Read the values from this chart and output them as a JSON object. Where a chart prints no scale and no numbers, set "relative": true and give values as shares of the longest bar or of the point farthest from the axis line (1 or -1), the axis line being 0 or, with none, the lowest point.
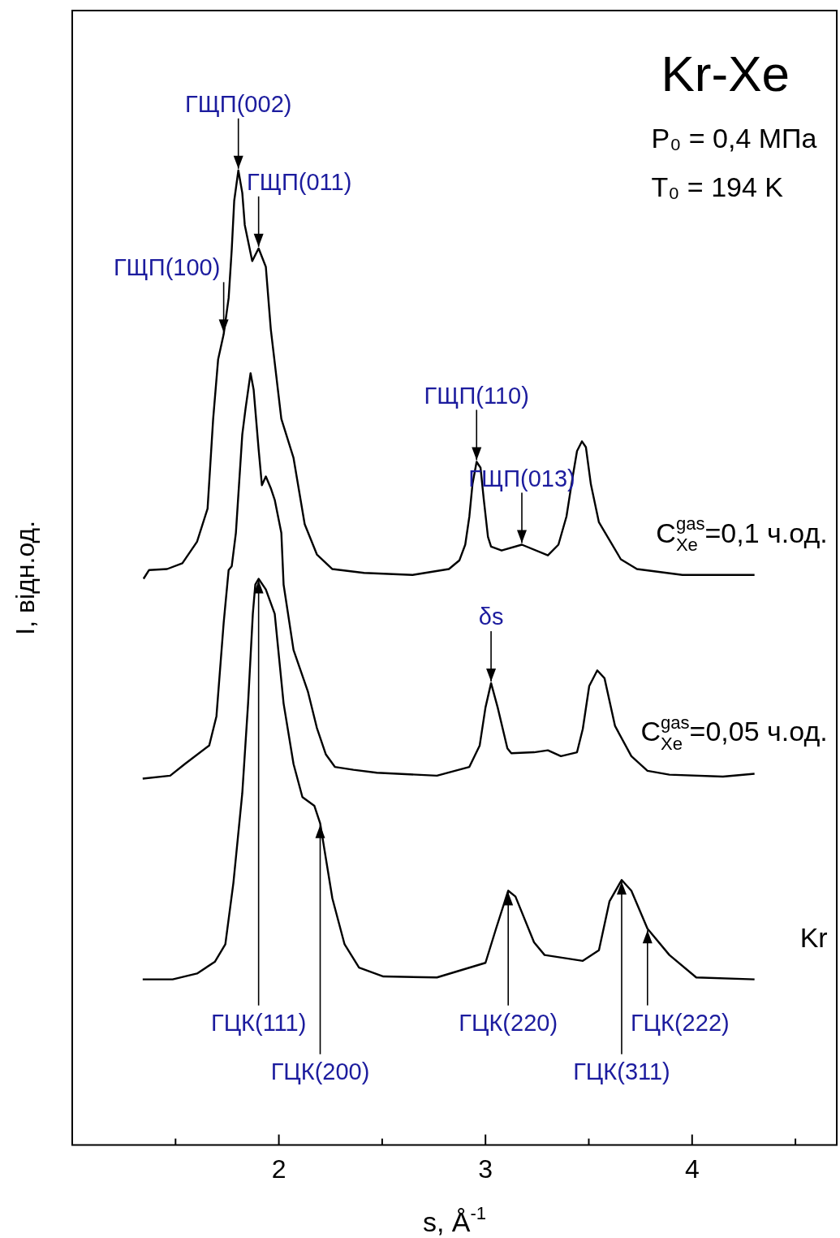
{
  "chart_data": {
    "type": "line",
    "title": "Kr-Xe",
    "xlabel": "s, Å$^{-1}$",
    "ylabel": "I, відн.од.",
    "relative": true,
    "xlim": [
      1,
      4.7
    ],
    "xticks": [
      {
        "value": 1.5,
        "label": null
      },
      2,
      {
        "value": 2.5,
        "label": null
      },
      3,
      {
        "value": 3.5,
        "label": null
      },
      4,
      {
        "value": 4.5,
        "label": null
      }
    ],
    "tick_labels": "x",
    "marker": "none",
    "line_style": "solid",
    "series": [
      {
        "name": "C$^{gas}$$_{Xe}$=0,1 ч.од.",
        "color": "#000000",
        "x": [
          1.345,
          1.372,
          1.459,
          1.533,
          1.604,
          1.655,
          1.682,
          1.706,
          1.733,
          1.757,
          1.772,
          1.784,
          1.804,
          1.823,
          1.835,
          1.871,
          1.902,
          1.937,
          1.961,
          2.012,
          2.071,
          2.125,
          2.184,
          2.259,
          2.412,
          2.647,
          2.823,
          2.874,
          2.902,
          2.922,
          2.937,
          2.957,
          2.976,
          2.992,
          3.012,
          3.027,
          3.078,
          3.176,
          3.302,
          3.353,
          3.392,
          3.423,
          3.443,
          3.467,
          3.486,
          3.51,
          3.549,
          3.655,
          3.733,
          3.953,
          4.302
        ],
        "values": [
          0.581,
          0.59,
          0.591,
          0.597,
          0.619,
          0.653,
          0.745,
          0.806,
          0.832,
          0.869,
          0.919,
          0.969,
          1,
          0.977,
          0.944,
          0.907,
          0.92,
          0.901,
          0.837,
          0.745,
          0.705,
          0.637,
          0.606,
          0.591,
          0.587,
          0.585,
          0.591,
          0.6,
          0.616,
          0.645,
          0.678,
          0.701,
          0.695,
          0.662,
          0.624,
          0.614,
          0.61,
          0.616,
          0.605,
          0.616,
          0.645,
          0.687,
          0.712,
          0.722,
          0.716,
          0.678,
          0.639,
          0.601,
          0.591,
          0.585,
          0.585
        ]
      },
      {
        "name": "C$^{gas}$$_{Xe}$=0,05 ч.од.",
        "color": "#000000",
        "x": [
          1.341,
          1.474,
          1.545,
          1.663,
          1.698,
          1.733,
          1.757,
          1.772,
          1.792,
          1.823,
          1.839,
          1.863,
          1.878,
          1.902,
          1.918,
          1.937,
          1.961,
          1.98,
          2.012,
          2.023,
          2.071,
          2.141,
          2.184,
          2.227,
          2.271,
          2.361,
          2.474,
          2.765,
          2.922,
          2.972,
          3,
          3.027,
          3.059,
          3.106,
          3.125,
          3.235,
          3.302,
          3.365,
          3.443,
          3.471,
          3.502,
          3.541,
          3.576,
          3.627,
          3.706,
          3.784,
          3.89,
          4.149,
          4.302
        ],
        "values": [
          0.376,
          0.379,
          0.391,
          0.41,
          0.44,
          0.536,
          0.59,
          0.594,
          0.628,
          0.729,
          0.756,
          0.792,
          0.775,
          0.714,
          0.677,
          0.686,
          0.674,
          0.662,
          0.628,
          0.575,
          0.508,
          0.465,
          0.428,
          0.401,
          0.388,
          0.385,
          0.382,
          0.379,
          0.388,
          0.41,
          0.449,
          0.474,
          0.449,
          0.407,
          0.402,
          0.403,
          0.405,
          0.399,
          0.403,
          0.427,
          0.471,
          0.487,
          0.479,
          0.43,
          0.399,
          0.384,
          0.38,
          0.378,
          0.381
        ]
      },
      {
        "name": "Kr",
        "color": "#000000",
        "x": [
          1.341,
          1.486,
          1.604,
          1.69,
          1.741,
          1.78,
          1.823,
          1.851,
          1.874,
          1.886,
          1.902,
          1.937,
          1.98,
          2.023,
          2.071,
          2.114,
          2.172,
          2.2,
          2.259,
          2.318,
          2.388,
          2.506,
          2.765,
          3,
          3.051,
          3.11,
          3.145,
          3.235,
          3.286,
          3.471,
          3.549,
          3.6,
          3.659,
          3.706,
          3.784,
          3.89,
          4.02,
          4.302
        ],
        "values": [
          0.17,
          0.17,
          0.176,
          0.188,
          0.206,
          0.269,
          0.361,
          0.453,
          0.545,
          0.575,
          0.581,
          0.57,
          0.545,
          0.453,
          0.391,
          0.357,
          0.348,
          0.33,
          0.253,
          0.206,
          0.182,
          0.173,
          0.172,
          0.187,
          0.222,
          0.261,
          0.255,
          0.208,
          0.195,
          0.189,
          0.2,
          0.25,
          0.272,
          0.261,
          0.222,
          0.195,
          0.172,
          0.17
        ]
      }
    ],
    "annotations": [
      "P₀ = 0,4 МПа",
      "T₀ = 194 K",
      {
        "text": "ГЩП(002)",
        "x": 1.804,
        "y": 1
      },
      {
        "text": "ГЩП(011)",
        "x": 1.902,
        "y": 0.92
      },
      {
        "text": "ГЩП(100)",
        "x": 1.733,
        "y": 0.832
      },
      {
        "text": "ГЩП(110)",
        "x": 2.957,
        "y": 0.701
      },
      {
        "text": "ГЩП(013)",
        "x": 3.176,
        "y": 0.616
      },
      {
        "text": "δs",
        "x": 3.027,
        "y": 0.474
      },
      {
        "text": "ГЦК(111)",
        "x": 1.902,
        "y": 0.581
      },
      {
        "text": "ГЦК(200)",
        "x": 2.2,
        "y": 0.33
      },
      {
        "text": "ГЦК(220)",
        "x": 3.11,
        "y": 0.261
      },
      {
        "text": "ГЦК(311)",
        "x": 3.659,
        "y": 0.272
      },
      {
        "text": "ГЦК(222)",
        "x": 3.784,
        "y": 0.222
      }
    ]
  }
}
